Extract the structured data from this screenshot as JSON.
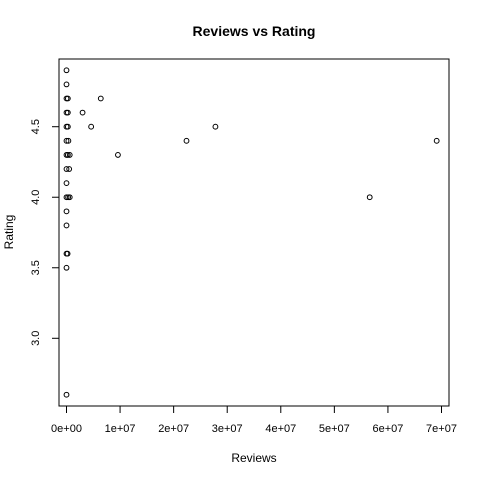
{
  "chart_data": {
    "type": "scatter",
    "title": "Reviews vs Rating",
    "xlabel": "Reviews",
    "ylabel": "Rating",
    "xlim": [
      -1400000,
      71400000
    ],
    "ylim": [
      2.52,
      4.98
    ],
    "x_ticks": [
      0,
      10000000,
      20000000,
      30000000,
      40000000,
      50000000,
      60000000,
      70000000
    ],
    "x_tick_labels": [
      "0e+00",
      "1e+07",
      "2e+07",
      "3e+07",
      "4e+07",
      "5e+07",
      "6e+07",
      "7e+07"
    ],
    "y_ticks": [
      3.0,
      3.5,
      4.0,
      4.5
    ],
    "y_tick_labels": [
      "3.0",
      "3.5",
      "4.0",
      "4.5"
    ],
    "grid": false,
    "legend": "none",
    "point_color": "#000000",
    "points": [
      {
        "x": 0,
        "y": 4.9
      },
      {
        "x": 0,
        "y": 4.8
      },
      {
        "x": 0,
        "y": 4.7
      },
      {
        "x": 250000,
        "y": 4.7
      },
      {
        "x": 0,
        "y": 4.6
      },
      {
        "x": 250000,
        "y": 4.6
      },
      {
        "x": 0,
        "y": 4.5
      },
      {
        "x": 250000,
        "y": 4.5
      },
      {
        "x": 0,
        "y": 4.4
      },
      {
        "x": 350000,
        "y": 4.4
      },
      {
        "x": 0,
        "y": 4.3
      },
      {
        "x": 250000,
        "y": 4.3
      },
      {
        "x": 600000,
        "y": 4.3
      },
      {
        "x": 0,
        "y": 4.2
      },
      {
        "x": 500000,
        "y": 4.2
      },
      {
        "x": 0,
        "y": 4.1
      },
      {
        "x": 0,
        "y": 4.0
      },
      {
        "x": 300000,
        "y": 4.0
      },
      {
        "x": 600000,
        "y": 4.0
      },
      {
        "x": 0,
        "y": 3.9
      },
      {
        "x": 0,
        "y": 3.8
      },
      {
        "x": 0,
        "y": 3.6
      },
      {
        "x": 200000,
        "y": 3.6
      },
      {
        "x": 0,
        "y": 3.5
      },
      {
        "x": 0,
        "y": 2.6
      },
      {
        "x": 6400000,
        "y": 4.7
      },
      {
        "x": 3000000,
        "y": 4.6
      },
      {
        "x": 4600000,
        "y": 4.5
      },
      {
        "x": 9600000,
        "y": 4.3
      },
      {
        "x": 22400000,
        "y": 4.4
      },
      {
        "x": 27800000,
        "y": 4.5
      },
      {
        "x": 56600000,
        "y": 4.0
      },
      {
        "x": 69100000,
        "y": 4.4
      }
    ]
  }
}
